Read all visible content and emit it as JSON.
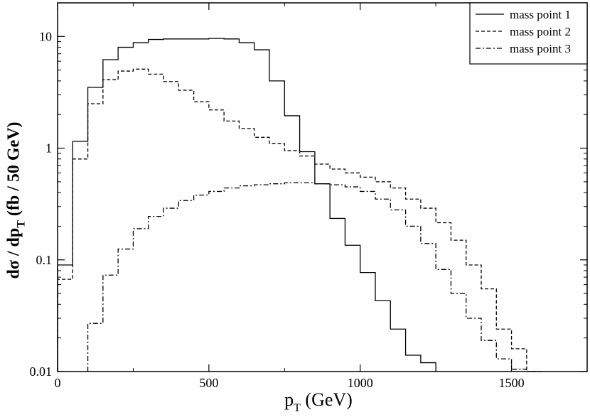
{
  "chart_data": {
    "type": "step-histogram",
    "xlabel": {
      "main": "p",
      "sub": "T",
      "rest": " (GeV)"
    },
    "ylabel": {
      "main": "dσ / dp",
      "sub": "T",
      "rest": "  (fb / 50 GeV)"
    },
    "xlim": [
      0,
      1750
    ],
    "ylim": [
      0.01,
      20
    ],
    "yscale": "log",
    "xticks": [
      0,
      500,
      1000,
      1500
    ],
    "xtick_labels": [
      "0",
      "500",
      "1000",
      "1500"
    ],
    "yticks": [
      0.01,
      0.1,
      1,
      10
    ],
    "ytick_labels": [
      "0.01",
      "0.1",
      "1",
      "10"
    ],
    "legend_position": "top-right",
    "bin_width": 50,
    "series": [
      {
        "name": "mass point 1",
        "style": "solid",
        "bin_starts": [
          0,
          50,
          100,
          150,
          200,
          250,
          300,
          350,
          400,
          450,
          500,
          550,
          600,
          650,
          700,
          750,
          800,
          850,
          900,
          950,
          1000,
          1050,
          1100,
          1150,
          1200
        ],
        "values": [
          0.09,
          1.15,
          3.5,
          6.2,
          8.0,
          8.8,
          9.4,
          9.5,
          9.5,
          9.5,
          9.6,
          9.5,
          8.8,
          7.6,
          4.0,
          1.95,
          0.93,
          0.48,
          0.235,
          0.135,
          0.077,
          0.043,
          0.024,
          0.014,
          0.012
        ]
      },
      {
        "name": "mass point 2",
        "style": "dashed",
        "bin_starts": [
          0,
          50,
          100,
          150,
          200,
          250,
          300,
          350,
          400,
          450,
          500,
          550,
          600,
          650,
          700,
          750,
          800,
          850,
          900,
          950,
          1000,
          1050,
          1100,
          1150,
          1200,
          1250,
          1300,
          1350,
          1400,
          1450,
          1500,
          1550
        ],
        "values": [
          0.067,
          0.8,
          2.5,
          4.1,
          4.9,
          5.1,
          4.6,
          3.95,
          3.3,
          2.6,
          2.2,
          1.75,
          1.5,
          1.25,
          1.1,
          0.95,
          0.85,
          0.72,
          0.65,
          0.6,
          0.55,
          0.5,
          0.44,
          0.35,
          0.29,
          0.215,
          0.15,
          0.09,
          0.055,
          0.024,
          0.016,
          0.01
        ]
      },
      {
        "name": "mass point 3",
        "style": "dashdot",
        "bin_starts": [
          100,
          150,
          200,
          250,
          300,
          350,
          400,
          450,
          500,
          550,
          600,
          650,
          700,
          750,
          800,
          850,
          900,
          950,
          1000,
          1050,
          1100,
          1150,
          1200,
          1250,
          1300,
          1350,
          1400,
          1450,
          1500,
          1550
        ],
        "values": [
          0.027,
          0.073,
          0.125,
          0.19,
          0.245,
          0.29,
          0.34,
          0.38,
          0.41,
          0.44,
          0.46,
          0.47,
          0.48,
          0.49,
          0.49,
          0.48,
          0.47,
          0.45,
          0.41,
          0.35,
          0.28,
          0.2,
          0.14,
          0.082,
          0.05,
          0.03,
          0.019,
          0.013,
          0.0105,
          0.01
        ]
      }
    ]
  }
}
